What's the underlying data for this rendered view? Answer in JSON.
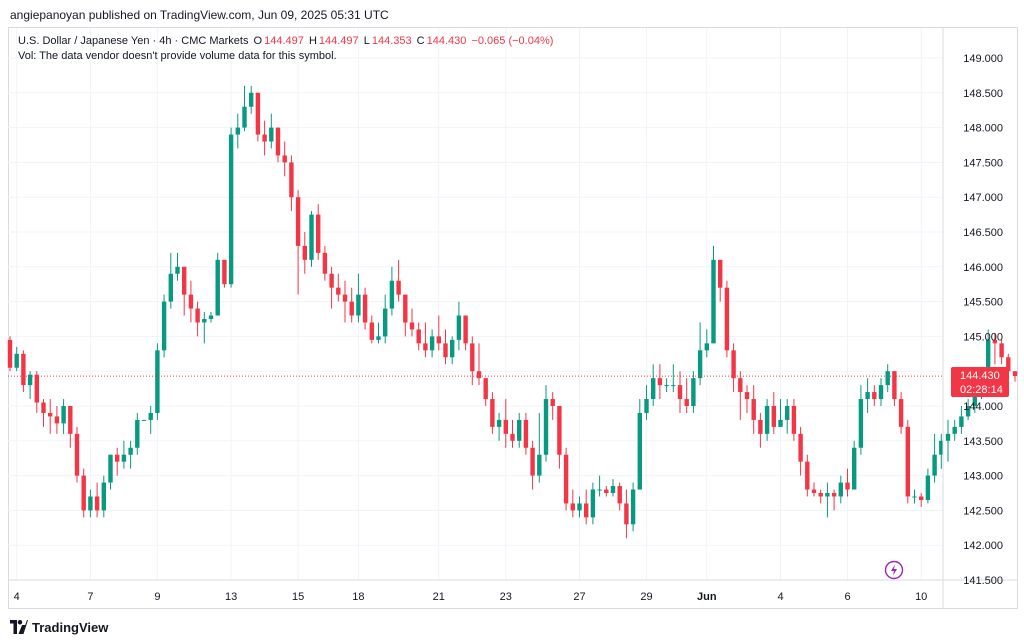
{
  "header": {
    "published_by": "angiepanoyan published on TradingView.com, Jun 09, 2025 05:31 UTC"
  },
  "legend": {
    "symbol": "U.S. Dollar / Japanese Yen · 4h · CMC Markets",
    "open_label": "O",
    "open": "144.497",
    "high_label": "H",
    "high": "144.497",
    "low_label": "L",
    "low": "144.353",
    "close_label": "C",
    "close": "144.430",
    "change": "−0.065 (−0.04%)",
    "volume_note": "Vol: The data vendor doesn't provide volume data for this symbol."
  },
  "price_tag": {
    "price": "144.430",
    "countdown": "02:28:14"
  },
  "footer": {
    "brand": "TradingView"
  },
  "colors": {
    "up": "#089981",
    "down": "#f23645",
    "grid": "#f0f3fa",
    "axis_text": "#131722",
    "last_line": "#f23645"
  },
  "chart_data": {
    "type": "candlestick",
    "y_ticks": [
      "149.000",
      "148.500",
      "148.000",
      "147.500",
      "147.000",
      "146.500",
      "146.000",
      "145.500",
      "145.000",
      "144.500",
      "144.000",
      "143.500",
      "143.000",
      "142.500",
      "142.000",
      "141.500"
    ],
    "ylim": [
      141.5,
      149.25
    ],
    "x_ticks": [
      {
        "label": "4",
        "i": 1
      },
      {
        "label": "7",
        "i": 12
      },
      {
        "label": "9",
        "i": 22
      },
      {
        "label": "13",
        "i": 33
      },
      {
        "label": "15",
        "i": 43
      },
      {
        "label": "18",
        "i": 52
      },
      {
        "label": "21",
        "i": 64
      },
      {
        "label": "23",
        "i": 74
      },
      {
        "label": "27",
        "i": 85
      },
      {
        "label": "29",
        "i": 95
      },
      {
        "label": "Jun",
        "i": 104
      },
      {
        "label": "4",
        "i": 115
      },
      {
        "label": "6",
        "i": 125
      },
      {
        "label": "10",
        "i": 136
      }
    ],
    "last_price": 144.43,
    "candles": [
      [
        144.95,
        144.55,
        145.0,
        144.5
      ],
      [
        144.55,
        144.75,
        144.85,
        144.5
      ],
      [
        144.75,
        144.3,
        144.8,
        144.2
      ],
      [
        144.3,
        144.45,
        144.5,
        144.1
      ],
      [
        144.45,
        144.05,
        144.5,
        143.9
      ],
      [
        144.05,
        143.9,
        144.1,
        143.7
      ],
      [
        143.9,
        143.85,
        144.1,
        143.6
      ],
      [
        143.85,
        143.75,
        144.0,
        143.6
      ],
      [
        143.75,
        144.0,
        144.1,
        143.6
      ],
      [
        144.0,
        143.6,
        144.0,
        143.4
      ],
      [
        143.6,
        143.0,
        143.7,
        142.9
      ],
      [
        143.0,
        142.5,
        143.1,
        142.4
      ],
      [
        142.5,
        142.7,
        142.8,
        142.4
      ],
      [
        142.7,
        142.5,
        142.9,
        142.4
      ],
      [
        142.5,
        142.9,
        143.0,
        142.4
      ],
      [
        142.9,
        143.3,
        143.3,
        142.8
      ],
      [
        143.3,
        143.2,
        143.4,
        143.0
      ],
      [
        143.2,
        143.3,
        143.5,
        143.1
      ],
      [
        143.3,
        143.4,
        143.5,
        143.1
      ],
      [
        143.4,
        143.8,
        143.9,
        143.3
      ],
      [
        143.8,
        143.8,
        143.8,
        143.8
      ],
      [
        143.8,
        143.9,
        144.0,
        143.6
      ],
      [
        143.9,
        144.8,
        144.9,
        143.8
      ],
      [
        144.8,
        145.5,
        145.6,
        144.7
      ],
      [
        145.5,
        145.9,
        146.2,
        145.4
      ],
      [
        145.9,
        146.0,
        146.2,
        145.8
      ],
      [
        146.0,
        145.6,
        146.0,
        145.3
      ],
      [
        145.6,
        145.4,
        145.8,
        145.2
      ],
      [
        145.4,
        145.2,
        145.5,
        145.0
      ],
      [
        145.2,
        145.25,
        145.35,
        144.9
      ],
      [
        145.25,
        145.3,
        145.35,
        145.2
      ],
      [
        145.3,
        146.1,
        146.2,
        145.5
      ],
      [
        146.1,
        145.75,
        146.1,
        145.7
      ],
      [
        145.75,
        147.9,
        148.0,
        145.7
      ],
      [
        147.9,
        148.0,
        148.2,
        147.7
      ],
      [
        148.0,
        148.3,
        148.6,
        147.95
      ],
      [
        148.3,
        148.5,
        148.6,
        148.2
      ],
      [
        148.5,
        147.9,
        148.5,
        147.8
      ],
      [
        147.9,
        147.8,
        148.1,
        147.6
      ],
      [
        147.8,
        148.0,
        148.2,
        147.7
      ],
      [
        148.0,
        147.6,
        148.0,
        147.5
      ],
      [
        147.6,
        147.5,
        147.8,
        147.3
      ],
      [
        147.5,
        147.0,
        147.6,
        146.8
      ],
      [
        147.0,
        146.3,
        147.1,
        145.6
      ],
      [
        146.3,
        146.1,
        146.5,
        145.9
      ],
      [
        146.1,
        146.75,
        146.8,
        146.0
      ],
      [
        146.75,
        146.2,
        146.9,
        146.1
      ],
      [
        146.2,
        145.9,
        146.3,
        145.8
      ],
      [
        145.9,
        145.7,
        146.0,
        145.4
      ],
      [
        145.7,
        145.6,
        145.9,
        145.5
      ],
      [
        145.6,
        145.5,
        145.8,
        145.2
      ],
      [
        145.5,
        145.3,
        145.7,
        145.2
      ],
      [
        145.3,
        145.6,
        145.9,
        145.2
      ],
      [
        145.6,
        145.2,
        145.7,
        145.1
      ],
      [
        145.2,
        144.95,
        145.3,
        144.9
      ],
      [
        144.95,
        145.0,
        145.2,
        144.9
      ],
      [
        145.0,
        145.4,
        145.6,
        144.9
      ],
      [
        145.4,
        145.8,
        146.0,
        145.3
      ],
      [
        145.8,
        145.6,
        146.1,
        145.5
      ],
      [
        145.6,
        145.2,
        145.6,
        145.0
      ],
      [
        145.2,
        145.1,
        145.4,
        145.0
      ],
      [
        145.1,
        144.9,
        145.2,
        144.8
      ],
      [
        144.9,
        144.8,
        145.2,
        144.7
      ],
      [
        144.8,
        145.0,
        145.1,
        144.7
      ],
      [
        145.0,
        144.9,
        145.3,
        144.8
      ],
      [
        144.9,
        144.7,
        145.1,
        144.6
      ],
      [
        144.7,
        144.95,
        145.0,
        144.6
      ],
      [
        144.95,
        145.3,
        145.5,
        144.8
      ],
      [
        145.3,
        144.9,
        145.3,
        144.8
      ],
      [
        144.9,
        144.5,
        145.0,
        144.3
      ],
      [
        144.5,
        144.4,
        144.9,
        144.3
      ],
      [
        144.4,
        144.1,
        144.4,
        144.0
      ],
      [
        144.1,
        143.7,
        144.2,
        143.6
      ],
      [
        143.7,
        143.8,
        143.9,
        143.5
      ],
      [
        143.8,
        143.6,
        144.1,
        143.4
      ],
      [
        143.6,
        143.5,
        143.8,
        143.4
      ],
      [
        143.5,
        143.8,
        143.9,
        143.4
      ],
      [
        143.8,
        143.4,
        143.9,
        143.3
      ],
      [
        143.4,
        143.0,
        143.5,
        142.8
      ],
      [
        143.0,
        143.3,
        143.9,
        142.9
      ],
      [
        143.3,
        144.1,
        144.3,
        143.2
      ],
      [
        144.1,
        144.0,
        144.2,
        143.8
      ],
      [
        144.0,
        143.3,
        144.0,
        143.1
      ],
      [
        143.3,
        142.6,
        143.4,
        142.5
      ],
      [
        142.6,
        142.5,
        142.8,
        142.4
      ],
      [
        142.5,
        142.6,
        142.7,
        142.4
      ],
      [
        142.6,
        142.4,
        142.8,
        142.3
      ],
      [
        142.4,
        142.8,
        142.9,
        142.3
      ],
      [
        142.8,
        142.8,
        143.0,
        142.7
      ],
      [
        142.8,
        142.75,
        142.85,
        142.7
      ],
      [
        142.75,
        142.85,
        142.95,
        142.7
      ],
      [
        142.85,
        142.6,
        142.9,
        142.5
      ],
      [
        142.6,
        142.3,
        142.8,
        142.1
      ],
      [
        142.3,
        142.8,
        142.9,
        142.2
      ],
      [
        142.8,
        143.9,
        144.1,
        142.8
      ],
      [
        143.9,
        144.1,
        144.3,
        143.8
      ],
      [
        144.1,
        144.4,
        144.6,
        144.0
      ],
      [
        144.4,
        144.3,
        144.6,
        144.1
      ],
      [
        144.3,
        144.3,
        144.4,
        144.2
      ],
      [
        144.3,
        144.3,
        144.6,
        144.2
      ],
      [
        144.3,
        144.1,
        144.5,
        143.9
      ],
      [
        144.1,
        144.0,
        144.4,
        143.9
      ],
      [
        144.0,
        144.4,
        144.5,
        143.9
      ],
      [
        144.4,
        144.8,
        145.2,
        144.3
      ],
      [
        144.8,
        144.9,
        145.1,
        144.7
      ],
      [
        144.9,
        146.1,
        146.3,
        144.9
      ],
      [
        146.1,
        145.7,
        146.1,
        145.5
      ],
      [
        145.7,
        144.8,
        145.8,
        144.7
      ],
      [
        144.8,
        144.4,
        144.9,
        144.2
      ],
      [
        144.4,
        144.2,
        144.5,
        143.8
      ],
      [
        144.2,
        144.1,
        144.3,
        143.9
      ],
      [
        144.1,
        143.8,
        144.3,
        143.6
      ],
      [
        143.8,
        143.6,
        143.9,
        143.4
      ],
      [
        143.6,
        144.0,
        144.1,
        143.5
      ],
      [
        144.0,
        143.7,
        144.2,
        143.6
      ],
      [
        143.7,
        143.8,
        144.1,
        143.7
      ],
      [
        143.8,
        144.0,
        144.1,
        143.6
      ],
      [
        144.0,
        143.6,
        144.1,
        143.5
      ],
      [
        143.6,
        143.2,
        143.7,
        143.0
      ],
      [
        143.2,
        142.8,
        143.3,
        142.7
      ],
      [
        142.8,
        142.75,
        142.9,
        142.7
      ],
      [
        142.75,
        142.7,
        142.8,
        142.6
      ],
      [
        142.7,
        142.75,
        142.9,
        142.4
      ],
      [
        142.75,
        142.7,
        142.8,
        142.5
      ],
      [
        142.7,
        142.9,
        143.0,
        142.6
      ],
      [
        142.9,
        142.8,
        143.1,
        142.7
      ],
      [
        142.8,
        143.4,
        143.5,
        142.8
      ],
      [
        143.4,
        144.1,
        144.3,
        143.3
      ],
      [
        144.1,
        144.2,
        144.4,
        143.9
      ],
      [
        144.2,
        144.1,
        144.3,
        144.0
      ],
      [
        144.1,
        144.3,
        144.4,
        144.0
      ],
      [
        144.3,
        144.5,
        144.6,
        144.2
      ],
      [
        144.5,
        144.1,
        144.5,
        144.0
      ],
      [
        144.1,
        143.7,
        144.2,
        143.6
      ],
      [
        143.7,
        142.7,
        143.8,
        142.6
      ],
      [
        142.7,
        142.7,
        142.8,
        142.6
      ],
      [
        142.7,
        142.65,
        142.75,
        142.55
      ],
      [
        142.65,
        143.0,
        143.1,
        142.6
      ],
      [
        143.0,
        143.3,
        143.6,
        142.9
      ],
      [
        143.3,
        143.5,
        143.6,
        143.1
      ],
      [
        143.5,
        143.6,
        143.8,
        143.2
      ],
      [
        143.6,
        143.7,
        143.8,
        143.5
      ],
      [
        143.7,
        143.85,
        144.0,
        143.6
      ],
      [
        143.85,
        144.0,
        144.1,
        143.8
      ],
      [
        144.0,
        144.2,
        144.3,
        143.9
      ],
      [
        144.2,
        144.4,
        144.5,
        144.1
      ],
      [
        144.4,
        144.95,
        145.1,
        144.3
      ],
      [
        144.95,
        144.9,
        145.05,
        144.6
      ],
      [
        144.9,
        144.7,
        144.95,
        144.6
      ],
      [
        144.7,
        144.5,
        144.75,
        144.4
      ],
      [
        144.5,
        144.43,
        144.5,
        144.35
      ]
    ]
  }
}
